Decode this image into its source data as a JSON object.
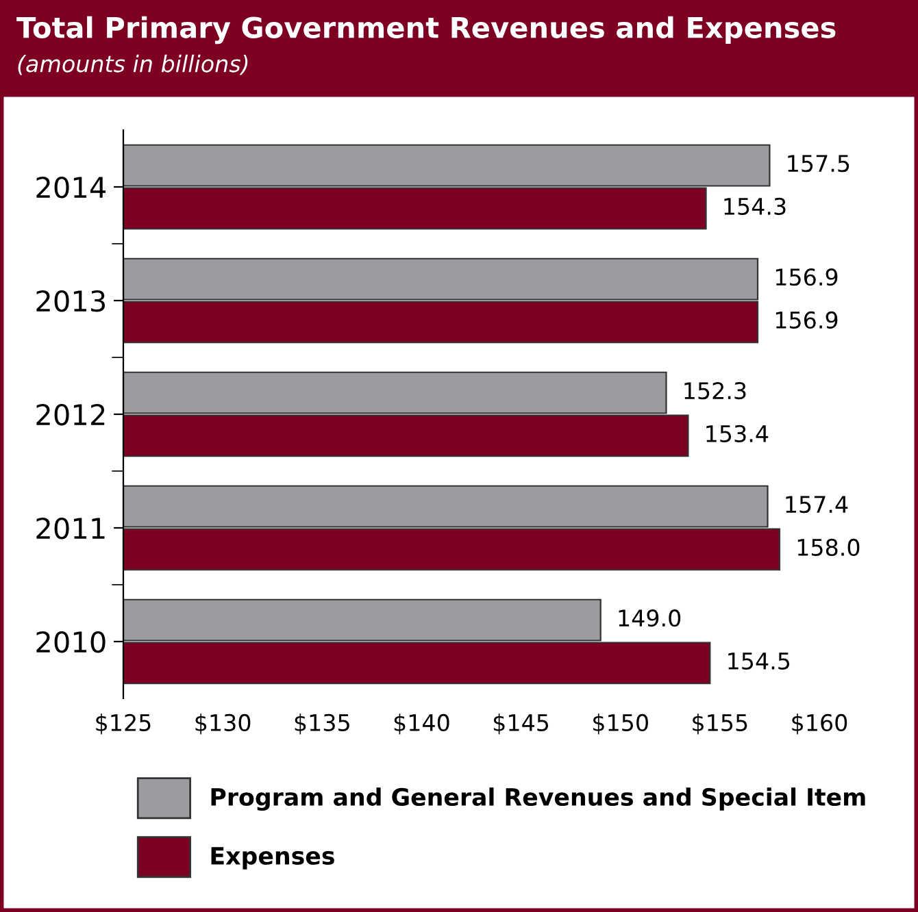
{
  "chart_data": {
    "type": "bar",
    "orientation": "horizontal",
    "title": "Total Primary Government Revenues and Expenses",
    "subtitle": "(amounts in billions)",
    "categories": [
      "2014",
      "2013",
      "2012",
      "2011",
      "2010"
    ],
    "series": [
      {
        "name": "Program and General Revenues and Special Item",
        "color": "#9c9ca0",
        "values": [
          157.5,
          156.9,
          152.3,
          157.4,
          149.0
        ],
        "value_labels": [
          "157.5",
          "156.9",
          "152.3",
          "157.4",
          "149.0"
        ]
      },
      {
        "name": "Expenses",
        "color": "#7d0022",
        "values": [
          154.3,
          156.9,
          153.4,
          158.0,
          154.5
        ],
        "value_labels": [
          "154.3",
          "156.9",
          "153.4",
          "158.0",
          "154.5"
        ]
      }
    ],
    "xlim": [
      125,
      160
    ],
    "xticks": [
      {
        "value": 125,
        "label": "$125"
      },
      {
        "value": 130,
        "label": "$130"
      },
      {
        "value": 135,
        "label": "$135"
      },
      {
        "value": 140,
        "label": "$140"
      },
      {
        "value": 145,
        "label": "$145"
      },
      {
        "value": 150,
        "label": "$150"
      },
      {
        "value": 155,
        "label": "$155"
      },
      {
        "value": 160,
        "label": "$160"
      }
    ],
    "grid": false,
    "legend": "bottom"
  }
}
